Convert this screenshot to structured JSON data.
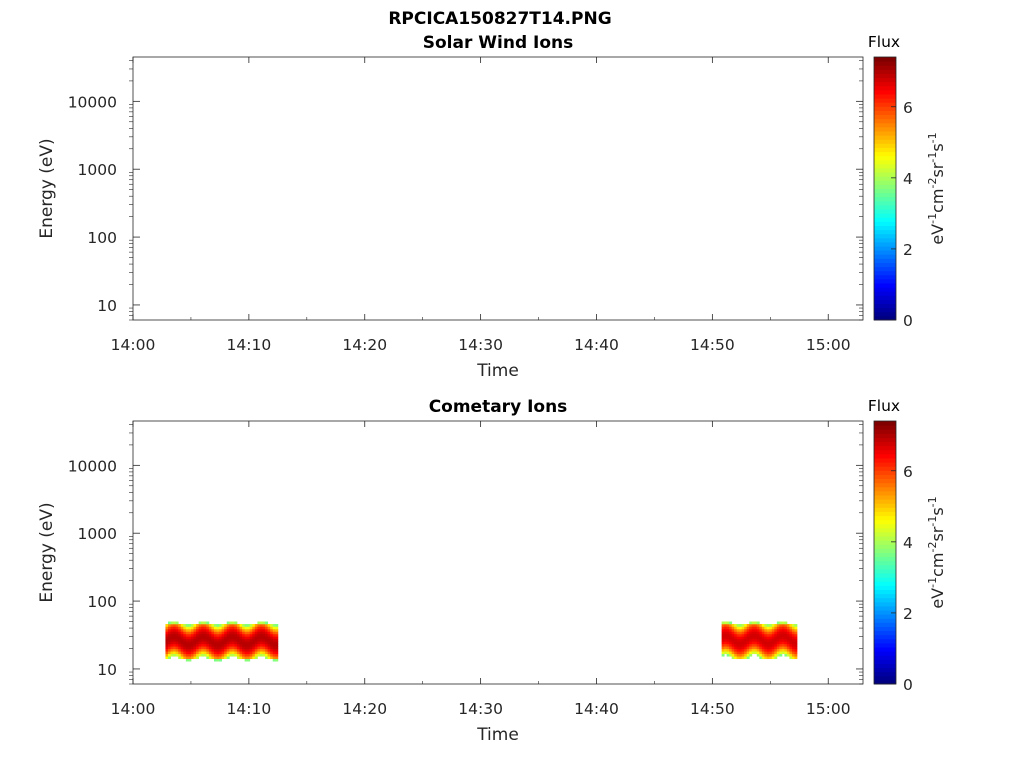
{
  "figure": {
    "title": "RPCICA150827T14.PNG"
  },
  "chart_data": [
    {
      "type": "heatmap",
      "title": "Solar Wind Ions",
      "xlabel": "Time",
      "ylabel": "Energy (eV)",
      "x_ticks": [
        "14:00",
        "14:10",
        "14:20",
        "14:30",
        "14:40",
        "14:50",
        "15:00"
      ],
      "x_range_minutes": [
        0,
        63
      ],
      "y_scale": "log",
      "y_ticks": [
        "10",
        "100",
        "1000",
        "10000"
      ],
      "y_range": [
        6,
        45000
      ],
      "colorbar": {
        "label": "eV-1cm-2sr-1s-1",
        "title": "Flux",
        "range": [
          0,
          7.4
        ],
        "ticks": [
          "0",
          "2",
          "4",
          "6"
        ],
        "colormap": "jet"
      },
      "blocks": []
    },
    {
      "type": "heatmap",
      "title": "Cometary Ions",
      "xlabel": "Time",
      "ylabel": "Energy (eV)",
      "x_ticks": [
        "14:00",
        "14:10",
        "14:20",
        "14:30",
        "14:40",
        "14:50",
        "15:00"
      ],
      "x_range_minutes": [
        0,
        63
      ],
      "y_scale": "log",
      "y_ticks": [
        "10",
        "100",
        "1000",
        "10000"
      ],
      "y_range": [
        6,
        45000
      ],
      "colorbar": {
        "label": "eV-1cm-2sr-1s-1",
        "title": "Flux",
        "range": [
          0,
          7.4
        ],
        "ticks": [
          "0",
          "2",
          "4",
          "6"
        ],
        "colormap": "jet"
      },
      "blocks": [
        {
          "t_start_min": 2.8,
          "t_end_min": 12.5,
          "e_min": 13,
          "e_max": 50,
          "peak_energy": 25,
          "peak_flux": 7.0
        },
        {
          "t_start_min": 50.8,
          "t_end_min": 57.3,
          "e_min": 13,
          "e_max": 50,
          "peak_energy": 26,
          "peak_flux": 6.8
        }
      ]
    }
  ]
}
